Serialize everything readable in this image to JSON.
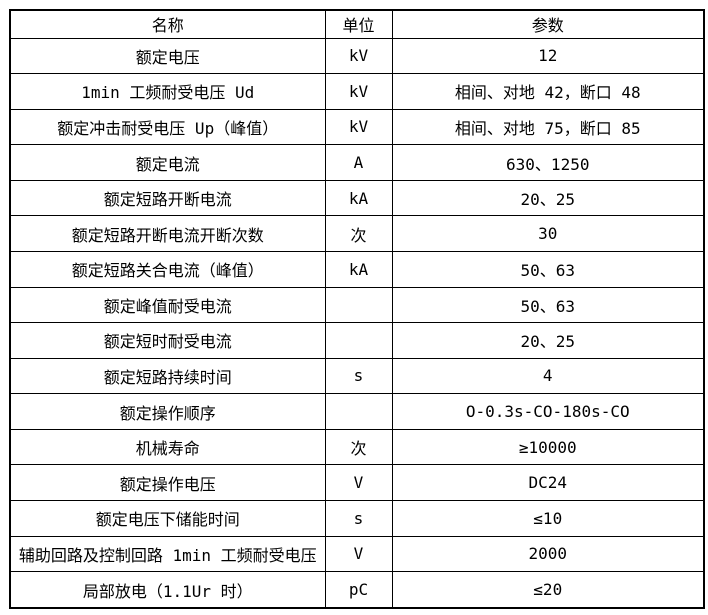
{
  "colors": {
    "border": "#000000",
    "text": "#000000",
    "background": "#ffffff"
  },
  "table": {
    "headers": {
      "name": "名称",
      "unit": "单位",
      "value": "参数"
    },
    "rows": [
      {
        "name": "额定电压",
        "unit": "kV",
        "value": "12"
      },
      {
        "name": "1min 工频耐受电压 Ud",
        "unit": "kV",
        "value": "相间、对地 42，断口 48"
      },
      {
        "name": "额定冲击耐受电压 Up（峰值）",
        "unit": "kV",
        "value": "相间、对地 75，断口 85"
      },
      {
        "name": "额定电流",
        "unit": "A",
        "value": "630、1250"
      },
      {
        "name": "额定短路开断电流",
        "unit": "kA",
        "value": "20、25"
      },
      {
        "name": "额定短路开断电流开断次数",
        "unit": "次",
        "value": "30"
      },
      {
        "name": "额定短路关合电流（峰值）",
        "unit": "kA",
        "value": "50、63"
      },
      {
        "name": "额定峰值耐受电流",
        "unit": "",
        "value": "50、63"
      },
      {
        "name": "额定短时耐受电流",
        "unit": "",
        "value": "20、25"
      },
      {
        "name": "额定短路持续时间",
        "unit": "s",
        "value": "4"
      },
      {
        "name": "额定操作顺序",
        "unit": "",
        "value": "O-0.3s-CO-180s-CO"
      },
      {
        "name": "机械寿命",
        "unit": "次",
        "value": "≥10000"
      },
      {
        "name": "额定操作电压",
        "unit": "V",
        "value": "DC24"
      },
      {
        "name": "额定电压下储能时间",
        "unit": "s",
        "value": "≤10"
      },
      {
        "name": "辅助回路及控制回路 1min 工频耐受电压",
        "unit": "V",
        "value": "2000"
      },
      {
        "name": "局部放电（1.1Ur 时）",
        "unit": "pC",
        "value": "≤20"
      }
    ]
  }
}
